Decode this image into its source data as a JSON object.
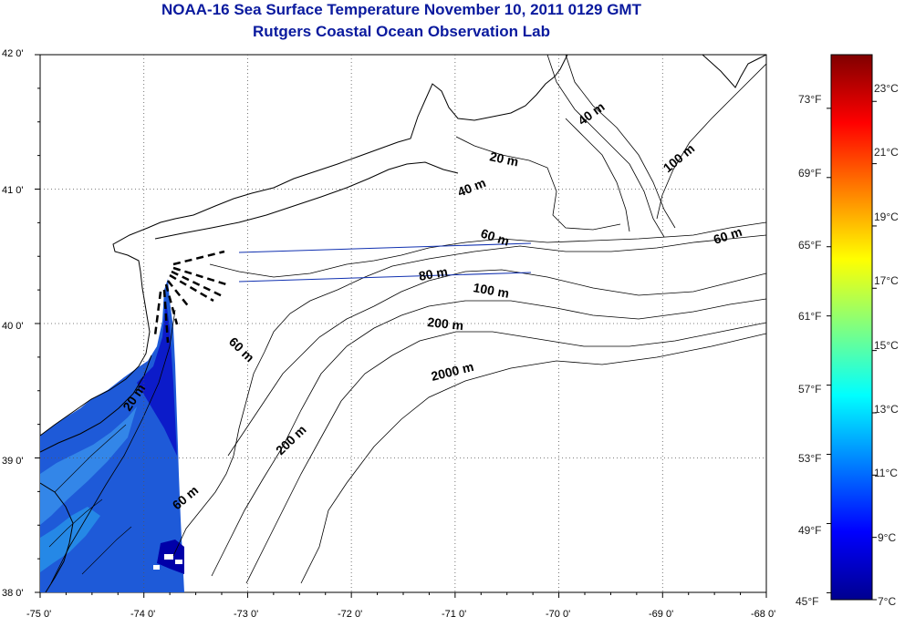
{
  "header": {
    "title": "NOAA-16 Sea Surface Temperature November 10, 2011 0129 GMT",
    "subtitle": "Rutgers Coastal Ocean Observation Lab"
  },
  "axes": {
    "lon_ticks": [
      "-75 0'",
      "-74 0'",
      "-73 0'",
      "-72 0'",
      "-71 0'",
      "-70 0'",
      "-69 0'",
      "-68 0'"
    ],
    "lat_ticks": [
      "42 0'",
      "41 0'",
      "40 0'",
      "39 0'",
      "38 0'"
    ],
    "lon_range": [
      -75,
      -68
    ],
    "lat_range": [
      38,
      42
    ],
    "grid": "dotted"
  },
  "contours": {
    "labels": [
      "40 m",
      "20 m",
      "40 m",
      "100 m",
      "60 m",
      "60 m",
      "80 m",
      "100 m",
      "200 m",
      "60 m",
      "2000 m",
      "20 m",
      "200 m",
      "60 m"
    ]
  },
  "colorbar": {
    "fahrenheit_labels": [
      "73°F",
      "69°F",
      "65°F",
      "61°F",
      "57°F",
      "53°F",
      "49°F",
      "45°F"
    ],
    "celsius_labels": [
      "23°C",
      "21°C",
      "19°C",
      "17°C",
      "15°C",
      "13°C",
      "11°C",
      "9°C",
      "7°C"
    ],
    "range_c": [
      7,
      24.5
    ],
    "colormap": [
      "#00008f",
      "#0000ff",
      "#0080ff",
      "#00ffff",
      "#80ff80",
      "#ffff00",
      "#ff8000",
      "#ff0000",
      "#800000"
    ]
  },
  "colors": {
    "title": "#0a1a9e",
    "coast": "#000000",
    "transect": "#1030b0",
    "water_sst": "#1e5ad8"
  }
}
